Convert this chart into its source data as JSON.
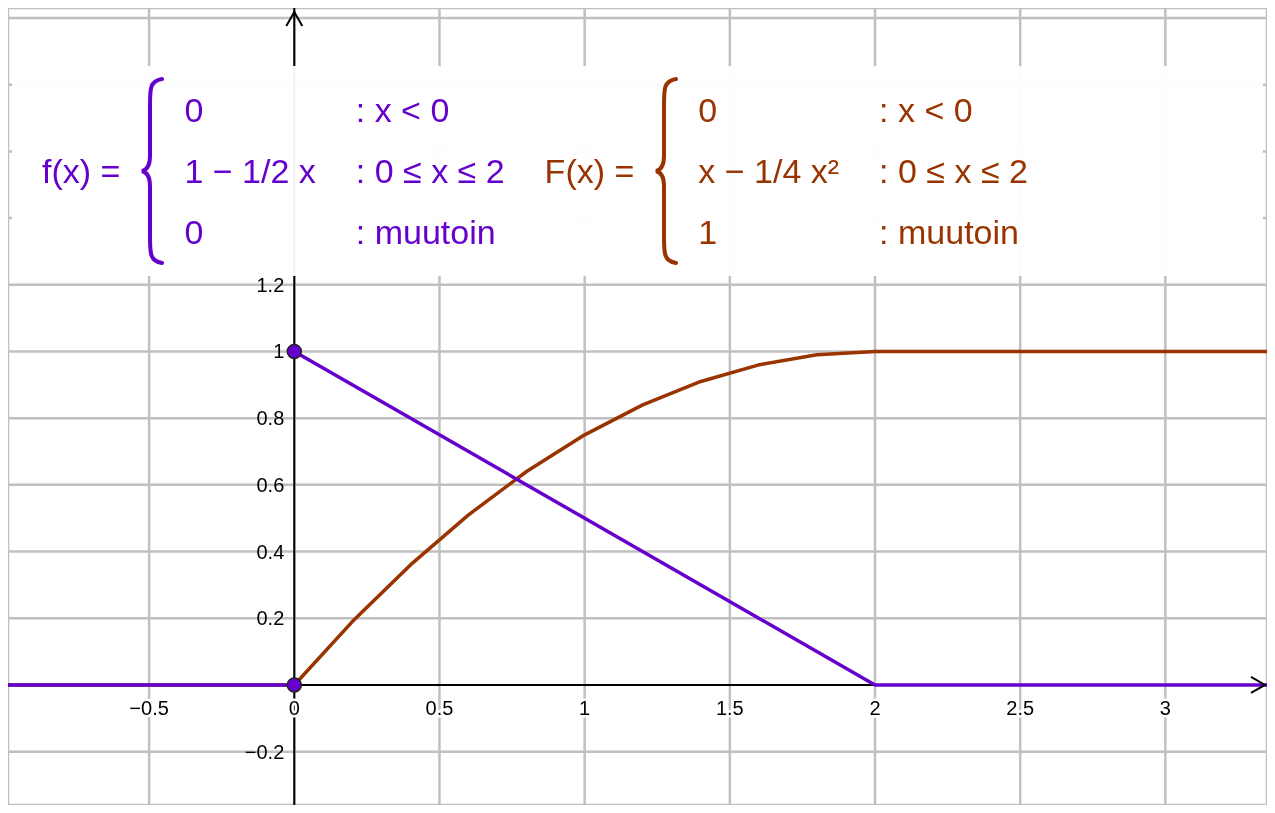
{
  "chart_data": {
    "type": "line",
    "xlim": [
      -0.986,
      3.35
    ],
    "ylim": [
      -0.36,
      2.03
    ],
    "xticks": [
      -0.5,
      0,
      0.5,
      1,
      1.5,
      2,
      2.5,
      3
    ],
    "yticks": [
      -0.2,
      0.2,
      0.4,
      0.6,
      0.8,
      1,
      1.2,
      {
        "value": 1.4,
        "label": null
      },
      {
        "value": 1.6,
        "label": null
      },
      {
        "value": 1.8,
        "label": null
      },
      {
        "value": 2,
        "label": null
      }
    ],
    "grid": true,
    "line_style": "solid",
    "marker": "none",
    "series": [
      {
        "color": "#6600cc",
        "x": [
          -0.986,
          0
        ],
        "values": [
          0,
          0
        ]
      },
      {
        "color": "#6600cc",
        "x": [
          0,
          2,
          3.35
        ],
        "values": [
          1,
          0,
          0
        ]
      },
      {
        "color": "#993300",
        "x": [
          -0.986,
          0,
          0.2,
          0.4,
          0.6,
          0.8,
          1,
          1.2,
          1.4,
          1.6,
          1.8,
          2,
          3.35
        ],
        "values": [
          0,
          0,
          0.19,
          0.36,
          0.51,
          0.64,
          0.75,
          0.84,
          0.91,
          0.96,
          0.99,
          1,
          1
        ]
      },
      {
        "type": "scatter",
        "marker": "circle",
        "color": "#6600cc",
        "x": [
          0,
          0
        ],
        "values": [
          1,
          0
        ]
      }
    ],
    "annotations": [
      "f(x) =",
      "0",
      ": x < 0",
      "1 − 1/2 x",
      ": 0 ≤ x ≤ 2",
      "0",
      ": muutoin",
      "F(x) =",
      "0",
      ": x < 0",
      "x − 1/4 x²",
      ": 0 ≤ x ≤ 2",
      "1",
      ": muutoin"
    ]
  }
}
